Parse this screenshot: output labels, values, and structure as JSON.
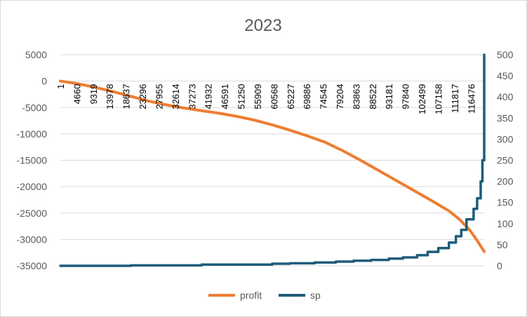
{
  "chart_data": {
    "type": "line",
    "title": "2023",
    "colors": {
      "profit": "#ED7D31",
      "sp": "#1F5C7A",
      "grid": "#D9D9D9",
      "text": "#595959"
    },
    "x_range": [
      1,
      120000
    ],
    "x_tick_labels": [
      "1",
      "4660",
      "9319",
      "13978",
      "18637",
      "23296",
      "27955",
      "32614",
      "37273",
      "41932",
      "46591",
      "51250",
      "55909",
      "60568",
      "65227",
      "69886",
      "74545",
      "79204",
      "83863",
      "88522",
      "93181",
      "97840",
      "102499",
      "107158",
      "111817",
      "116476"
    ],
    "y_left": {
      "min": -35000,
      "max": 5000,
      "step": 5000,
      "ticks": [
        "5000",
        "0",
        "-5000",
        "-10000",
        "-15000",
        "-20000",
        "-25000",
        "-30000",
        "-35000"
      ]
    },
    "y_right": {
      "min": 0,
      "max": 500,
      "step": 50,
      "ticks": [
        "500",
        "450",
        "400",
        "350",
        "300",
        "250",
        "200",
        "150",
        "100",
        "50",
        "0"
      ]
    },
    "legend_position": "bottom",
    "grid": true,
    "series": [
      {
        "name": "profit",
        "axis": "left",
        "x": [
          1,
          5000,
          10000,
          15000,
          20000,
          25000,
          30000,
          35000,
          40000,
          45000,
          50000,
          55000,
          60000,
          65000,
          70000,
          75000,
          80000,
          85000,
          90000,
          95000,
          100000,
          105000,
          110000,
          113000,
          116000,
          118000,
          120000
        ],
        "y": [
          0,
          -500,
          -1200,
          -2000,
          -2900,
          -3800,
          -4500,
          -5100,
          -5600,
          -6100,
          -6700,
          -7400,
          -8300,
          -9300,
          -10400,
          -11600,
          -13200,
          -15000,
          -16900,
          -18800,
          -20700,
          -22600,
          -24600,
          -26200,
          -28300,
          -30200,
          -32300
        ]
      },
      {
        "name": "sp",
        "axis": "right",
        "x": [
          1,
          20000,
          40000,
          60000,
          65000,
          72000,
          78000,
          83000,
          88000,
          93000,
          97000,
          101000,
          104000,
          107000,
          110000,
          112000,
          113500,
          115000,
          117000,
          118000,
          119000,
          119500,
          120000
        ],
        "y": [
          0,
          1,
          3,
          5,
          6,
          8,
          10,
          12,
          14,
          17,
          20,
          25,
          33,
          42,
          55,
          70,
          85,
          110,
          135,
          160,
          200,
          250,
          500
        ]
      }
    ]
  }
}
